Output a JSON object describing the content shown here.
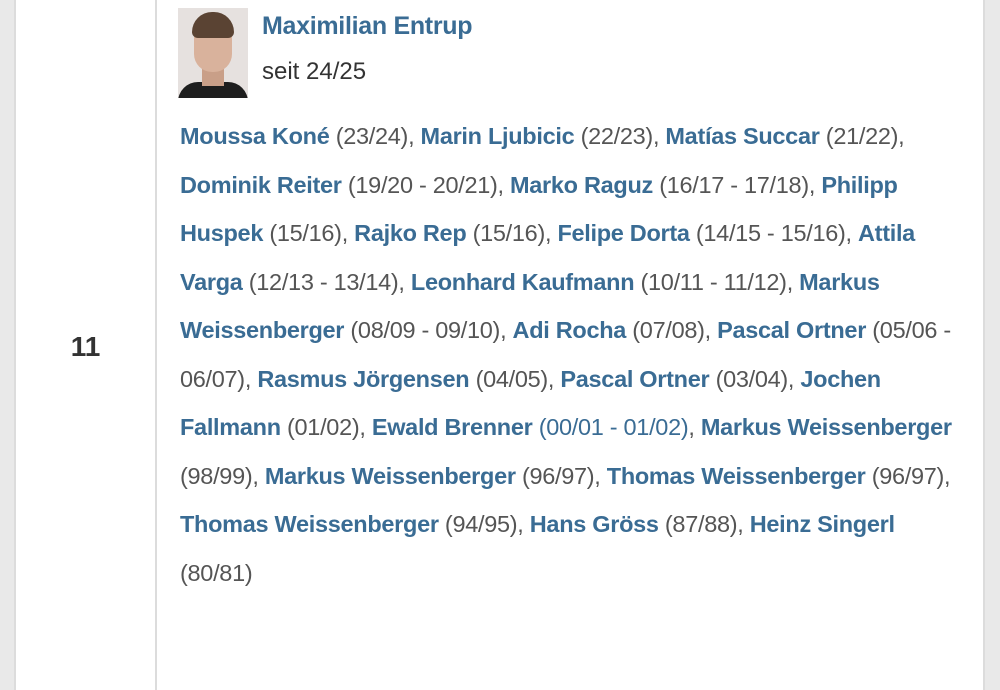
{
  "number": "11",
  "current": {
    "name": "Maximilian Entrup",
    "since": "seit 24/25"
  },
  "predecessors": [
    {
      "name": "Moussa Koné",
      "years": "(23/24)"
    },
    {
      "name": "Marin Ljubicic",
      "years": "(22/23)"
    },
    {
      "name": "Matías Succar",
      "years": "(21/22)"
    },
    {
      "name": "Dominik Reiter",
      "years": "(19/20 - 20/21)"
    },
    {
      "name": "Marko Raguz",
      "years": "(16/17 - 17/18)"
    },
    {
      "name": "Philipp Huspek",
      "years": "(15/16)"
    },
    {
      "name": "Rajko Rep",
      "years": "(15/16)"
    },
    {
      "name": "Felipe Dorta",
      "years": "(14/15 - 15/16)"
    },
    {
      "name": "Attila Varga",
      "years": "(12/13 - 13/14)"
    },
    {
      "name": "Leonhard Kaufmann",
      "years": "(10/11 - 11/12)"
    },
    {
      "name": "Markus Weissenberger",
      "years": "(08/09 - 09/10)"
    },
    {
      "name": "Adi Rocha",
      "years": "(07/08)"
    },
    {
      "name": "Pascal Ortner",
      "years": "(05/06 - 06/07)"
    },
    {
      "name": "Rasmus Jörgensen",
      "years": "(04/05)"
    },
    {
      "name": "Pascal Ortner",
      "years": "(03/04)"
    },
    {
      "name": "Jochen Fallmann",
      "years": "(01/02)"
    },
    {
      "name": "Ewald Brenner",
      "years": "(00/01 - 01/02)",
      "years_linked": true
    },
    {
      "name": "Markus Weissenberger",
      "years": "(98/99)"
    },
    {
      "name": "Markus Weissenberger",
      "years": "(96/97)"
    },
    {
      "name": "Thomas Weissenberger",
      "years": "(96/97)"
    },
    {
      "name": "Thomas Weissenberger",
      "years": "(94/95)"
    },
    {
      "name": "Hans Gröss",
      "years": "(87/88)"
    },
    {
      "name": "Heinz Singerl",
      "years": "(80/81)"
    }
  ],
  "colors": {
    "link": "#3a6c94",
    "text": "#555555",
    "border": "#dcdcdc",
    "background": "#e9e9e9"
  }
}
